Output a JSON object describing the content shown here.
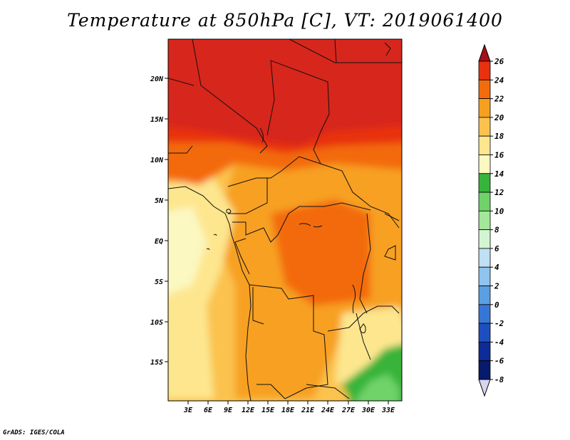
{
  "title": "Temperature at 850hPa [C], VT: 2019061400",
  "credit": "GrADS: IGES/COLA",
  "lon_labels": [
    "3E",
    "6E",
    "9E",
    "12E",
    "15E",
    "18E",
    "21E",
    "24E",
    "27E",
    "30E",
    "33E"
  ],
  "lat_labels": [
    "20N",
    "15N",
    "10N",
    "5N",
    "EQ",
    "5S",
    "10S",
    "15S"
  ],
  "colorbar": {
    "labels": [
      "26",
      "24",
      "22",
      "20",
      "18",
      "16",
      "14",
      "12",
      "10",
      "8",
      "6",
      "4",
      "2",
      "0",
      "-2",
      "-4",
      "-6",
      "-8"
    ],
    "colors": [
      "#a50f15",
      "#e8310f",
      "#f36b0c",
      "#f7a020",
      "#fbc24e",
      "#fde68e",
      "#fcf8c2",
      "#37b43b",
      "#6fd36a",
      "#a2e79a",
      "#d4f5d2",
      "#bfe0f5",
      "#8ec4ee",
      "#5b9fe3",
      "#3677d6",
      "#1d4fc0",
      "#0d2c9a",
      "#071a6b",
      "#d9d4ee"
    ]
  }
}
